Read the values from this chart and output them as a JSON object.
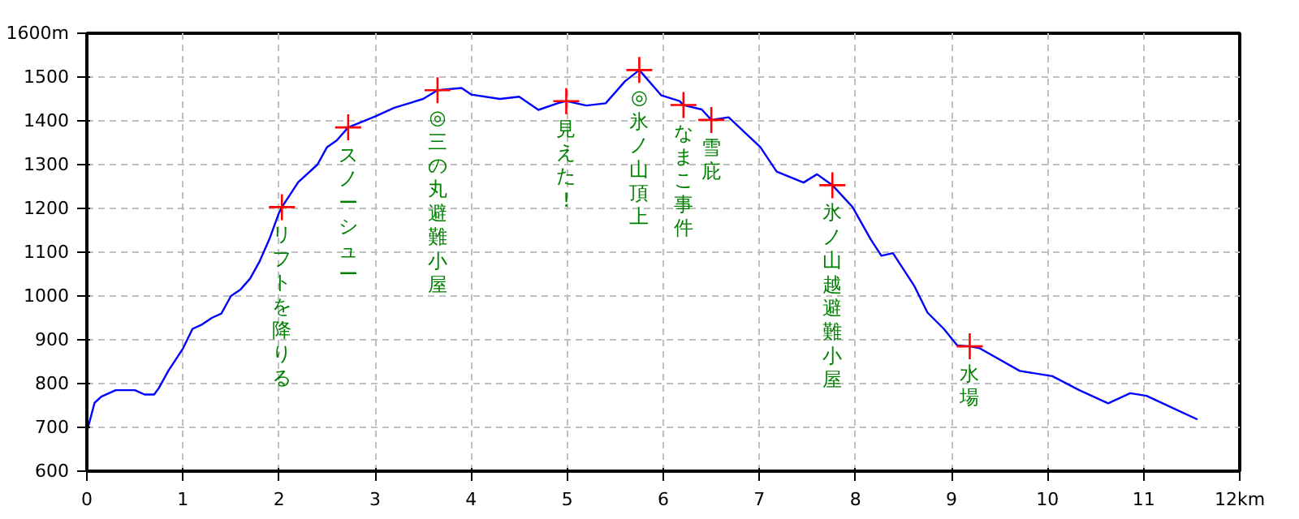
{
  "chart_data": {
    "type": "line",
    "series": [
      {
        "color": "#0000ff",
        "x": [
          0,
          0.08,
          0.15,
          0.3,
          0.5,
          0.6,
          0.7,
          0.75,
          0.85,
          1.0,
          1.1,
          1.2,
          1.3,
          1.4,
          1.5,
          1.6,
          1.7,
          1.8,
          1.9,
          2.0,
          2.03,
          2.2,
          2.4,
          2.5,
          2.6,
          2.72,
          3.0,
          3.2,
          3.5,
          3.65,
          3.9,
          4.0,
          4.3,
          4.5,
          4.7,
          4.9,
          4.99,
          5.2,
          5.4,
          5.6,
          5.75,
          5.98,
          6.17,
          6.21,
          6.4,
          6.5,
          6.68,
          7.01,
          7.18,
          7.46,
          7.6,
          7.76,
          7.97,
          8.16,
          8.27,
          8.39,
          8.61,
          8.75,
          8.92,
          9.06,
          9.19,
          9.29,
          9.71,
          10.05,
          10.33,
          10.63,
          10.86,
          11.03,
          11.56
        ],
        "values": [
          690,
          756,
          770,
          785,
          785,
          775,
          775,
          790,
          830,
          880,
          925,
          935,
          950,
          960,
          1000,
          1015,
          1040,
          1080,
          1130,
          1190,
          1203,
          1260,
          1300,
          1340,
          1355,
          1385,
          1410,
          1430,
          1450,
          1470,
          1475,
          1460,
          1450,
          1455,
          1425,
          1440,
          1445,
          1435,
          1440,
          1490,
          1516,
          1458,
          1445,
          1436,
          1426,
          1402,
          1408,
          1340,
          1284,
          1259,
          1278,
          1253,
          1203,
          1129,
          1092,
          1098,
          1024,
          962,
          925,
          887,
          885,
          881,
          829,
          817,
          785,
          755,
          778,
          772,
          718
        ]
      },
      {
        "type": "scatter",
        "marker": "cross",
        "color": "#ff0000",
        "x": [
          2.03,
          2.72,
          3.65,
          4.99,
          5.75,
          6.21,
          6.5,
          7.76,
          9.19
        ],
        "values": [
          1203,
          1385,
          1470,
          1445,
          1516,
          1436,
          1402,
          1253,
          885
        ]
      }
    ],
    "xlim": [
      0,
      12
    ],
    "ylim": [
      600,
      1600
    ],
    "xticks": [
      0,
      1,
      2,
      3,
      4,
      5,
      6,
      7,
      8,
      9,
      10,
      11,
      {
        "value": 12,
        "label": "12km"
      }
    ],
    "yticks": [
      600,
      700,
      800,
      900,
      1000,
      1100,
      1200,
      1300,
      1400,
      1500,
      {
        "value": 1600,
        "label": "1600m"
      }
    ],
    "grid": true,
    "annotations": [
      {
        "text": "リフトを降りる",
        "x": 2.03,
        "y": 1203
      },
      {
        "text": "スノーシュー",
        "x": 2.72,
        "y": 1385
      },
      {
        "text": "◎三の丸避難小屋",
        "x": 3.65,
        "y": 1470
      },
      {
        "text": "見えた!",
        "x": 4.99,
        "y": 1445
      },
      {
        "text": "◎氷ノ山頂上",
        "x": 5.75,
        "y": 1516
      },
      {
        "text": "なまこ事件",
        "x": 6.21,
        "y": 1436
      },
      {
        "text": "雪庇",
        "x": 6.5,
        "y": 1402
      },
      {
        "text": "氷ノ山越避難小屋",
        "x": 7.76,
        "y": 1253
      },
      {
        "text": "水場",
        "x": 9.19,
        "y": 885
      }
    ]
  }
}
